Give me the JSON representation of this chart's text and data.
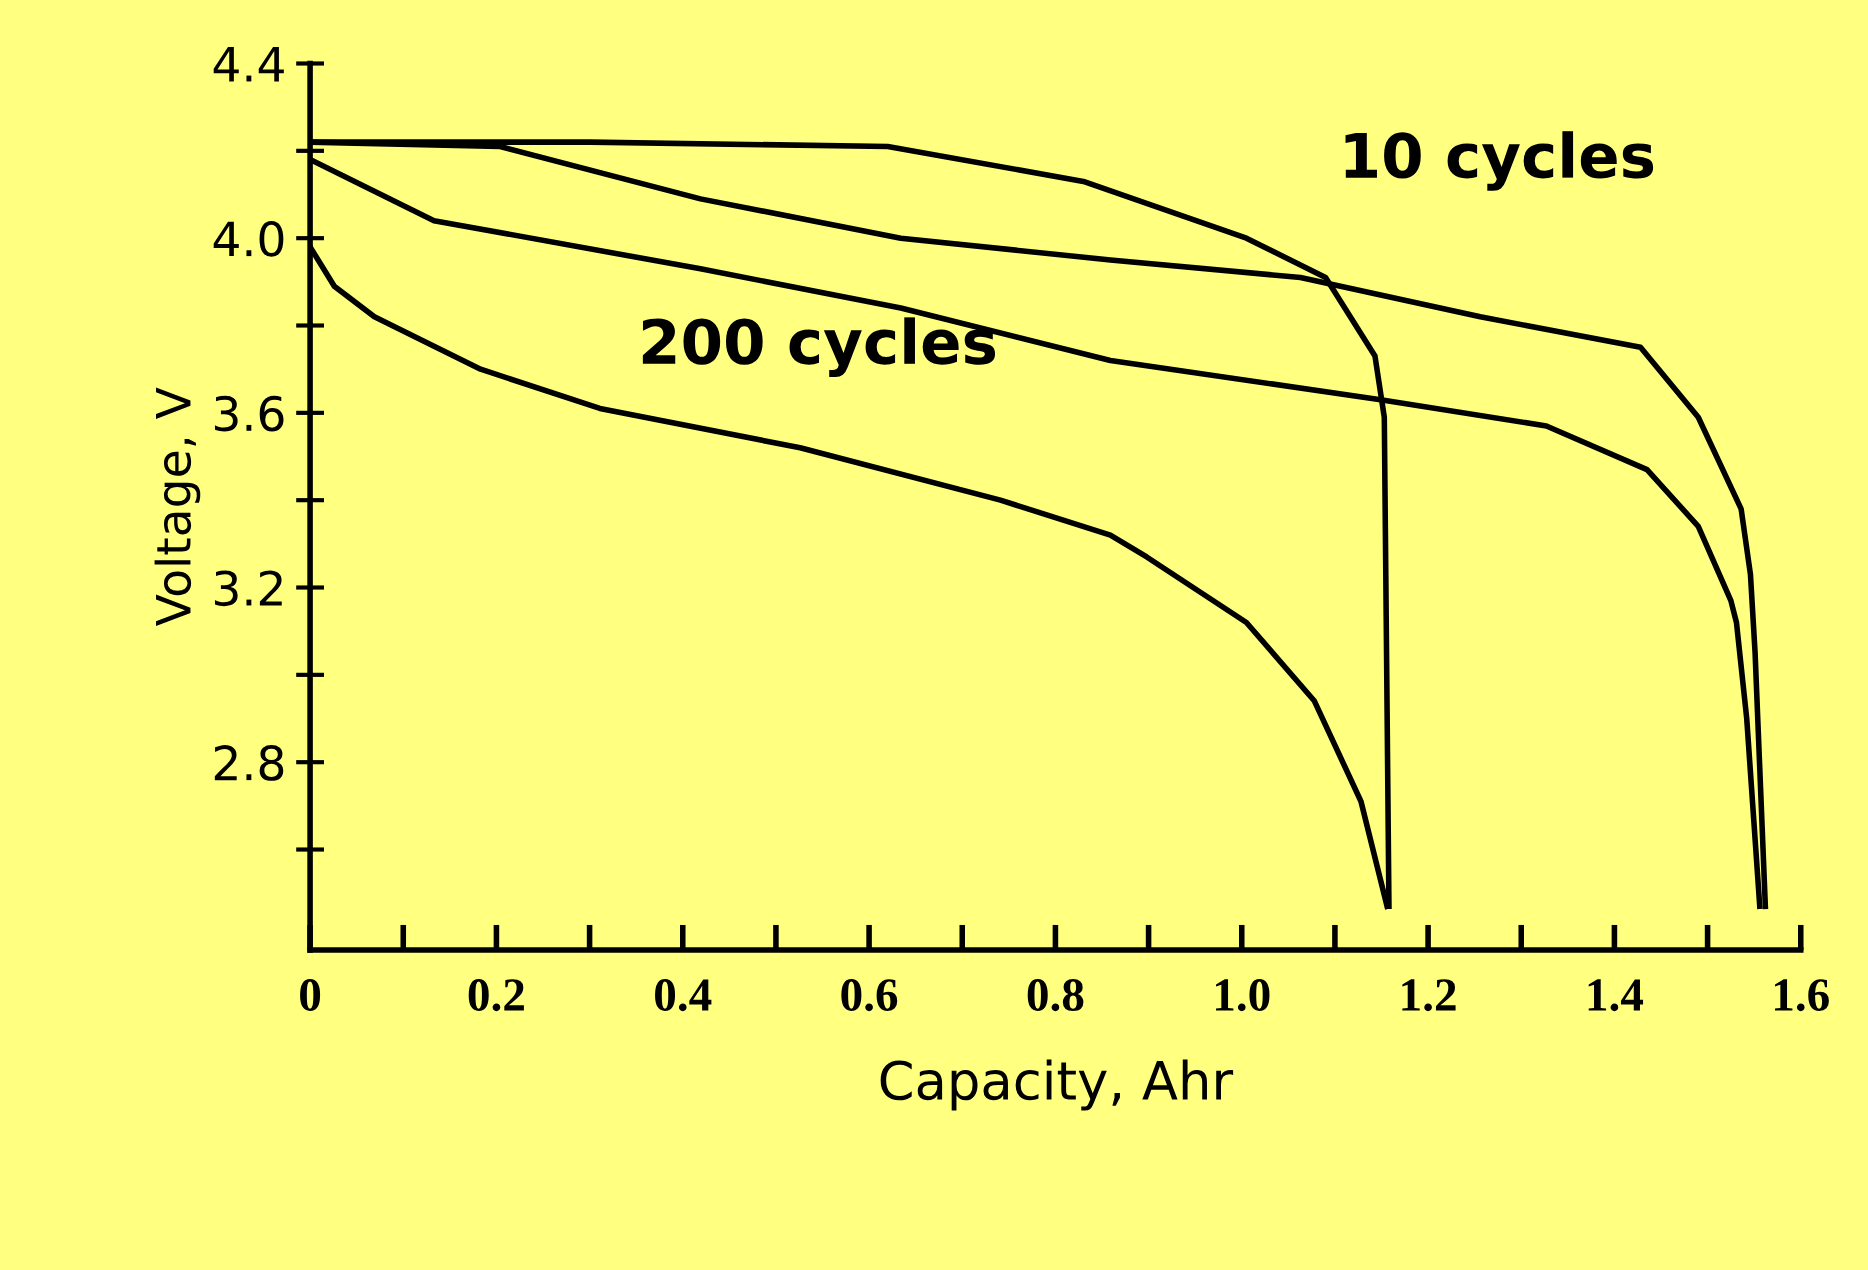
{
  "chart_data": {
    "type": "line",
    "xlabel": "Capacity, Ahr",
    "ylabel": "Voltage, V",
    "annotations": [
      "10 cycles",
      "200 cycles"
    ],
    "series": [
      {
        "color": "#000000",
        "x": [
          0,
          0.3,
          0.62,
          0.83,
          1.005,
          1.09,
          1.143,
          1.153,
          1.158
        ],
        "values": [
          4.22,
          4.22,
          4.21,
          4.13,
          4.0,
          3.91,
          3.73,
          3.59,
          2.47
        ]
      },
      {
        "color": "#000000",
        "x": [
          0,
          0.204,
          0.419,
          0.634,
          0.859,
          1.063,
          1.256,
          1.428,
          1.49,
          1.536,
          1.546,
          1.551,
          1.562
        ],
        "values": [
          4.22,
          4.21,
          4.09,
          4.0,
          3.95,
          3.91,
          3.82,
          3.75,
          3.59,
          3.38,
          3.23,
          3.05,
          2.47
        ]
      },
      {
        "color": "#000000",
        "x": [
          0,
          0.133,
          0.419,
          0.634,
          0.859,
          1.149,
          1.327,
          1.435,
          1.49,
          1.525,
          1.531,
          1.542,
          1.556
        ],
        "values": [
          4.18,
          4.04,
          3.93,
          3.84,
          3.72,
          3.63,
          3.57,
          3.47,
          3.34,
          3.17,
          3.12,
          2.9,
          2.47
        ]
      },
      {
        "color": "#000000",
        "x": [
          0,
          0.026,
          0.069,
          0.183,
          0.311,
          0.526,
          0.741,
          0.859,
          0.898,
          1.005,
          1.078,
          1.128,
          1.156
        ],
        "values": [
          3.98,
          3.89,
          3.82,
          3.7,
          3.61,
          3.52,
          3.4,
          3.32,
          3.27,
          3.12,
          2.94,
          2.71,
          2.47
        ]
      }
    ],
    "xlim": [
      0,
      1.6
    ],
    "ylim": [
      2.37,
      4.4
    ],
    "xticks": [
      0,
      {
        "value": 0.1,
        "label": null
      },
      0.2,
      {
        "value": 0.3,
        "label": null
      },
      0.4,
      {
        "value": 0.5,
        "label": null
      },
      0.6,
      {
        "value": 0.7,
        "label": null
      },
      0.8,
      {
        "value": 0.9,
        "label": null
      },
      {
        "value": 1.0,
        "label": "1.0"
      },
      {
        "value": 1.1,
        "label": null
      },
      1.2,
      {
        "value": 1.3,
        "label": null
      },
      1.4,
      {
        "value": 1.5,
        "label": null
      },
      1.6
    ],
    "yticks": [
      {
        "value": 2.6,
        "label": null
      },
      2.8,
      {
        "value": 3.0,
        "label": null
      },
      3.2,
      {
        "value": 3.4,
        "label": null
      },
      3.6,
      {
        "value": 3.8,
        "label": null
      },
      {
        "value": 4.0,
        "label": "4.0"
      },
      {
        "value": 4.2,
        "label": null
      },
      4.4
    ],
    "marker": "none",
    "line_style": "solid"
  }
}
